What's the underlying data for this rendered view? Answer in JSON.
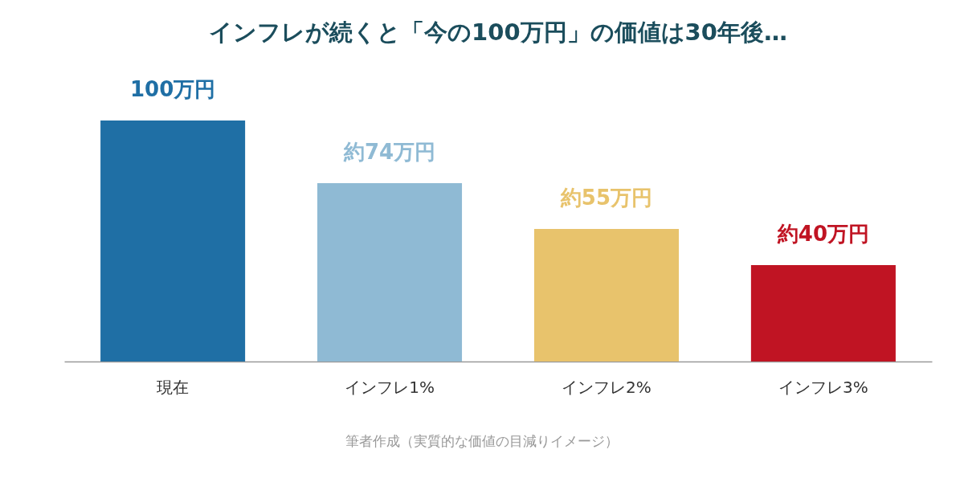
{
  "chart_data": {
    "type": "bar",
    "title": "インフレが続くと「今の100万円」の価値は30年後…",
    "categories": [
      "現在",
      "インフレ1%",
      "インフレ2%",
      "インフレ3%"
    ],
    "values": [
      100,
      74,
      55,
      40
    ],
    "value_labels": [
      "100万円",
      "約74万円",
      "約55万円",
      "約40万円"
    ],
    "colors": [
      "#1f6fa5",
      "#8fbad4",
      "#e8c36c",
      "#c01423"
    ],
    "tick_labels": "x",
    "legend": false,
    "grid": false,
    "annotations": [
      "筆者作成（実質的な価値の目減りイメージ）"
    ]
  }
}
